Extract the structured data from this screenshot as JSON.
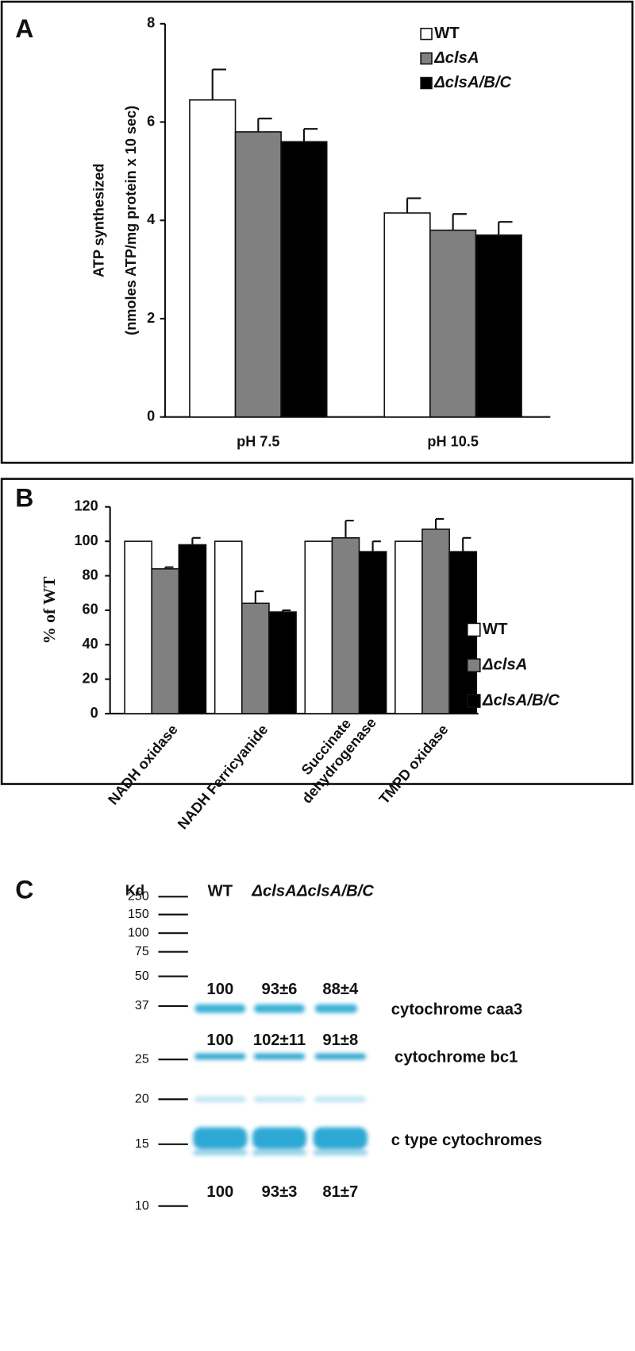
{
  "chart_data": [
    {
      "type": "bar",
      "panel_label": "A",
      "ylabel": [
        "ATP synthesized",
        "(nmoles ATP/mg protein x 10 sec)"
      ],
      "categories": [
        "pH 7.5",
        "pH 10.5"
      ],
      "series": [
        {
          "name": "WT",
          "color": "#ffffff",
          "values": [
            6.45,
            4.15
          ],
          "errors": [
            0.62,
            0.3
          ]
        },
        {
          "name": "ΔclsA",
          "color": "#808080",
          "values": [
            5.8,
            3.8
          ],
          "errors": [
            0.27,
            0.33
          ]
        },
        {
          "name": "ΔclsA/B/C",
          "color": "#000000",
          "values": [
            5.6,
            3.7
          ],
          "errors": [
            0.26,
            0.27
          ]
        }
      ],
      "ylim": [
        0,
        8
      ],
      "yticks": [
        0,
        2,
        4,
        6,
        8
      ],
      "legend": "upper right"
    },
    {
      "type": "bar",
      "panel_label": "B",
      "ylabel": [
        "% of WT"
      ],
      "categories": [
        "NADH oxidase",
        "NADH Ferricyanide",
        "Succinate dehydrogenase",
        "TMPD oxidase"
      ],
      "series": [
        {
          "name": "WT",
          "color": "#ffffff",
          "values": [
            100,
            100,
            100,
            100
          ]
        },
        {
          "name": "ΔclsA",
          "color": "#808080",
          "values": [
            84,
            64,
            102,
            107
          ],
          "errors": [
            1,
            7,
            10,
            6
          ]
        },
        {
          "name": "ΔclsA/B/C",
          "color": "#000000",
          "values": [
            98,
            59,
            94,
            94
          ],
          "errors": [
            4,
            1,
            6,
            8
          ]
        }
      ],
      "ylim": [
        0,
        120
      ],
      "yticks": [
        0,
        20,
        40,
        60,
        80,
        100,
        120
      ],
      "legend": "right"
    }
  ],
  "gel": {
    "panel_label": "C",
    "kd_label": "Kd",
    "lanes": [
      "WT",
      "ΔclsA",
      "ΔclsA/B/C"
    ],
    "markers": [
      250,
      150,
      100,
      75,
      50,
      37,
      25,
      20,
      15,
      10
    ],
    "bands": [
      {
        "name": "cytochrome caa3",
        "labels": [
          "100",
          "93±6",
          "88±4"
        ]
      },
      {
        "name": "cytochrome bc1",
        "labels": [
          "100",
          "102±11",
          "91±8"
        ]
      },
      {
        "name": "c type cytochromes",
        "labels": [
          "100",
          "93±3",
          "81±7"
        ]
      }
    ]
  }
}
